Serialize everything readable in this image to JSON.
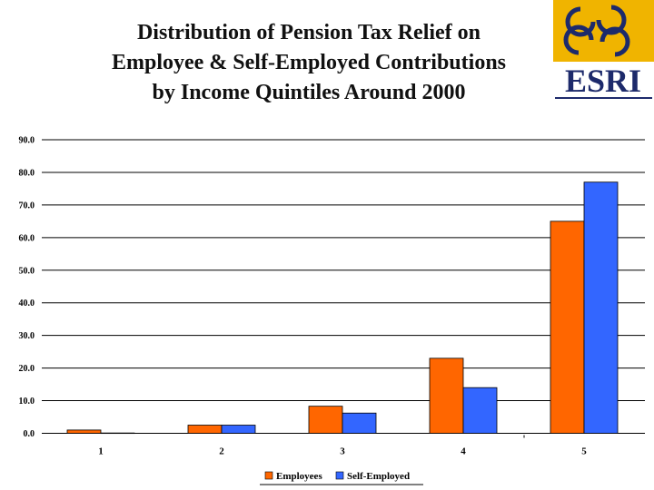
{
  "title_lines": [
    "Distribution of Pension Tax Relief on",
    "Employee & Self-Employed Contributions",
    "by Income Quintiles Around 2000"
  ],
  "logo": {
    "text": "ESRI",
    "colors": {
      "navy": "#1d2a6b",
      "gold": "#f0b400"
    }
  },
  "chart_data": {
    "type": "bar",
    "categories": [
      "1",
      "2",
      "3",
      "4",
      "5"
    ],
    "series": [
      {
        "name": "Employees",
        "values": [
          1.0,
          2.5,
          8.3,
          23.0,
          65.0
        ],
        "color": "#ff6600"
      },
      {
        "name": "Self-Employed",
        "values": [
          0.1,
          2.5,
          6.2,
          14.0,
          77.0
        ],
        "color": "#3366ff"
      }
    ],
    "ylim": [
      0,
      90
    ],
    "yticks": [
      "0.0",
      "10.0",
      "20.0",
      "30.0",
      "40.0",
      "50.0",
      "60.0",
      "70.0",
      "80.0",
      "90.0"
    ],
    "grid": true,
    "legend_position": "bottom"
  }
}
